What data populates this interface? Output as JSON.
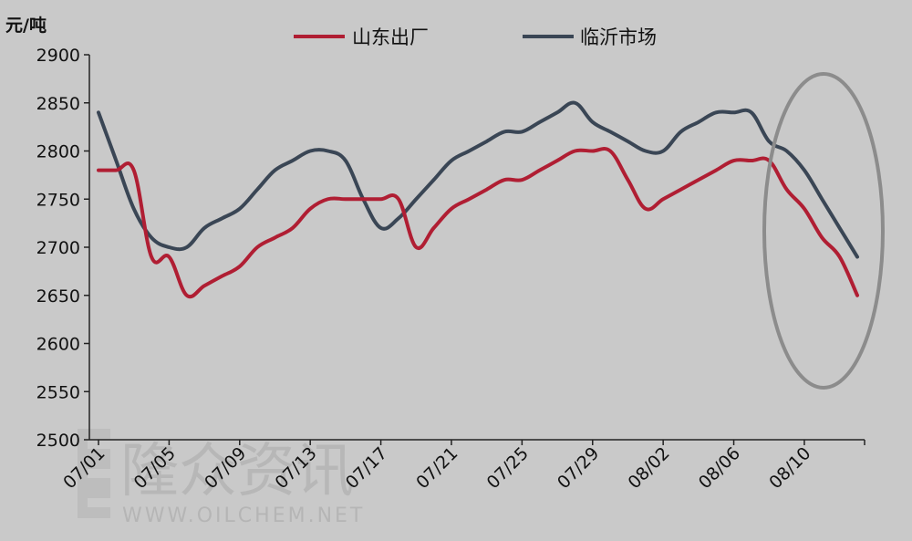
{
  "chart_data": {
    "type": "line",
    "title": "",
    "ylabel": "元/吨",
    "xlabel": "",
    "ylim": [
      2500,
      2900
    ],
    "yticks": [
      2500,
      2550,
      2600,
      2650,
      2700,
      2750,
      2800,
      2850,
      2900
    ],
    "xtick_labels": [
      "07/01",
      "07/05",
      "07/09",
      "07/13",
      "07/17",
      "07/21",
      "07/25",
      "07/29",
      "08/02",
      "08/06",
      "08/10"
    ],
    "x": [
      "07/01",
      "07/02",
      "07/03",
      "07/04",
      "07/05",
      "07/06",
      "07/07",
      "07/08",
      "07/09",
      "07/10",
      "07/11",
      "07/12",
      "07/13",
      "07/14",
      "07/15",
      "07/16",
      "07/17",
      "07/18",
      "07/19",
      "07/20",
      "07/21",
      "07/22",
      "07/23",
      "07/24",
      "07/25",
      "07/26",
      "07/27",
      "07/28",
      "07/29",
      "07/30",
      "07/31",
      "08/01",
      "08/02",
      "08/03",
      "08/04",
      "08/05",
      "08/06",
      "08/07",
      "08/08",
      "08/09",
      "08/10",
      "08/11",
      "08/12",
      "08/13"
    ],
    "series": [
      {
        "name": "山东出厂",
        "color": "#b01e33",
        "values": [
          2780,
          2780,
          2780,
          2690,
          2690,
          2650,
          2660,
          2670,
          2680,
          2700,
          2710,
          2720,
          2740,
          2750,
          2750,
          2750,
          2750,
          2750,
          2700,
          2720,
          2740,
          2750,
          2760,
          2770,
          2770,
          2780,
          2790,
          2800,
          2800,
          2800,
          2770,
          2740,
          2750,
          2760,
          2770,
          2780,
          2790,
          2790,
          2790,
          2760,
          2740,
          2710,
          2690,
          2650
        ]
      },
      {
        "name": "临沂市场",
        "color": "#3a4655",
        "values": [
          2840,
          2790,
          2740,
          2710,
          2700,
          2700,
          2720,
          2730,
          2740,
          2760,
          2780,
          2790,
          2800,
          2800,
          2790,
          2750,
          2720,
          2730,
          2750,
          2770,
          2790,
          2800,
          2810,
          2820,
          2820,
          2830,
          2840,
          2850,
          2830,
          2820,
          2810,
          2800,
          2800,
          2820,
          2830,
          2840,
          2840,
          2840,
          2810,
          2800,
          2780,
          2750,
          2720,
          2690
        ]
      }
    ],
    "grid": false,
    "legend_position": "top"
  },
  "watermark": {
    "chinese": "隆众资讯",
    "url": "WWW.OILCHEM.NET"
  },
  "highlight_color": "#8c8c8c"
}
